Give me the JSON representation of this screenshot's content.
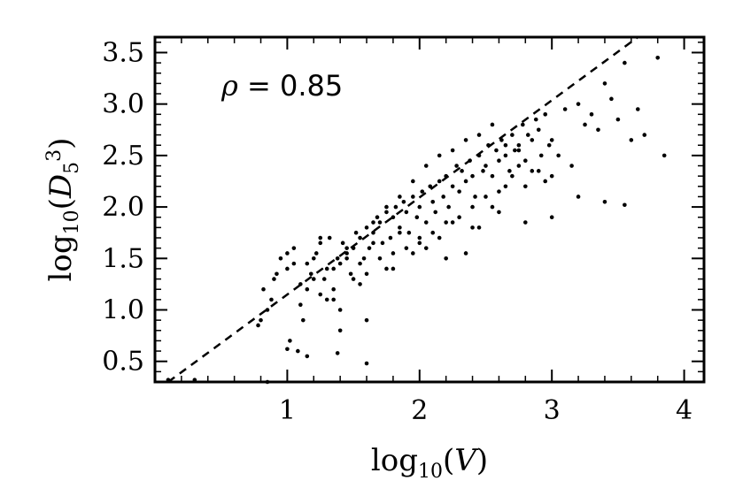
{
  "chart_data": {
    "type": "scatter",
    "xlabel": {
      "base": "log",
      "sub": "10",
      "arg": "V"
    },
    "ylabel": {
      "base": "log",
      "sub": "10",
      "arg_main": "D",
      "arg_sub": "5",
      "arg_sup": "3"
    },
    "xlim": [
      0.0,
      4.15
    ],
    "ylim": [
      0.3,
      3.65
    ],
    "xticks": [
      1,
      2,
      3,
      4
    ],
    "yticks": [
      0.5,
      1.0,
      1.5,
      2.0,
      2.5,
      3.0,
      3.5
    ],
    "xtick_labels": [
      "1",
      "2",
      "3",
      "4"
    ],
    "ytick_labels": [
      "0.5",
      "1.0",
      "1.5",
      "2.0",
      "2.5",
      "3.0",
      "3.5"
    ],
    "grid": false,
    "annotation": {
      "symbol": "ρ",
      "text": " = 0.85"
    },
    "fit_line": {
      "style": "dashed",
      "points": [
        [
          0.1,
          0.3
        ],
        [
          3.65,
          3.65
        ]
      ]
    },
    "series": [
      {
        "marker": "dot",
        "color": "#000000",
        "x": [
          0.8,
          0.85,
          0.82,
          0.9,
          0.95,
          1.0,
          1.05,
          0.78,
          0.88,
          0.92,
          1.02,
          1.08,
          1.12,
          1.1,
          1.15,
          1.2,
          1.18,
          1.22,
          1.25,
          1.28,
          1.3,
          1.32,
          1.35,
          1.38,
          1.4,
          1.42,
          1.45,
          1.48,
          1.5,
          1.52,
          1.55,
          1.58,
          1.6,
          1.62,
          1.65,
          1.68,
          1.7,
          1.72,
          1.75,
          1.78,
          1.8,
          1.82,
          1.85,
          1.88,
          1.9,
          1.92,
          1.95,
          1.98,
          2.0,
          2.02,
          2.05,
          2.08,
          2.1,
          2.12,
          2.15,
          2.18,
          2.2,
          2.22,
          2.25,
          2.28,
          2.3,
          2.32,
          2.35,
          2.38,
          2.4,
          2.42,
          2.45,
          2.48,
          2.5,
          2.52,
          2.55,
          2.58,
          2.6,
          2.62,
          2.65,
          2.68,
          2.7,
          2.72,
          2.75,
          2.78,
          2.8,
          2.82,
          2.85,
          2.88,
          2.9,
          2.92,
          2.95,
          2.98,
          3.0,
          3.05,
          3.1,
          3.15,
          3.2,
          3.25,
          3.3,
          3.35,
          3.4,
          3.45,
          3.5,
          3.55,
          3.6,
          3.65,
          3.7,
          3.8,
          3.85,
          1.0,
          1.1,
          1.2,
          1.3,
          1.4,
          1.5,
          1.6,
          1.7,
          1.8,
          1.9,
          2.0,
          2.1,
          2.2,
          2.3,
          2.4,
          2.5,
          2.6,
          2.7,
          2.8,
          2.9,
          3.0,
          1.05,
          1.15,
          1.25,
          1.35,
          1.45,
          1.55,
          1.65,
          1.75,
          1.85,
          1.95,
          2.05,
          2.15,
          2.25,
          2.35,
          2.45,
          2.55,
          2.65,
          2.75,
          2.85,
          2.95,
          1.25,
          1.35,
          1.45,
          1.55,
          1.65,
          1.75,
          1.85,
          1.95,
          2.05,
          2.15,
          2.25,
          2.35,
          2.45,
          2.55,
          2.65,
          2.75,
          1.4,
          1.6,
          1.8,
          2.0,
          2.2,
          2.4,
          2.6,
          2.8,
          3.0,
          3.2,
          0.1,
          0.3,
          0.85,
          1.0,
          1.15,
          1.38,
          1.6,
          3.4,
          3.55
        ],
        "y": [
          0.9,
          1.0,
          1.2,
          1.3,
          1.5,
          1.55,
          1.45,
          0.85,
          1.1,
          1.35,
          0.7,
          0.6,
          0.9,
          1.05,
          1.2,
          1.5,
          1.35,
          1.55,
          1.65,
          1.3,
          1.4,
          1.7,
          1.2,
          1.5,
          1.45,
          1.65,
          1.55,
          1.35,
          1.6,
          1.75,
          1.7,
          1.5,
          1.8,
          1.6,
          1.75,
          1.9,
          1.85,
          1.65,
          1.95,
          1.7,
          1.9,
          2.0,
          1.8,
          2.05,
          1.95,
          1.75,
          2.1,
          1.9,
          2.0,
          2.15,
          1.85,
          2.2,
          2.05,
          1.95,
          2.25,
          2.1,
          2.3,
          2.0,
          2.2,
          2.4,
          2.15,
          2.35,
          2.25,
          2.45,
          2.3,
          2.1,
          2.5,
          2.35,
          2.4,
          2.6,
          2.3,
          2.55,
          2.45,
          2.65,
          2.5,
          2.35,
          2.7,
          2.55,
          2.6,
          2.8,
          2.45,
          2.7,
          2.65,
          2.85,
          2.75,
          2.5,
          2.9,
          2.6,
          2.3,
          2.5,
          2.95,
          2.4,
          3.0,
          2.8,
          2.9,
          2.75,
          3.2,
          3.05,
          2.85,
          3.4,
          2.65,
          2.95,
          2.7,
          3.45,
          2.5,
          1.4,
          1.25,
          1.3,
          1.1,
          1.0,
          1.3,
          1.35,
          1.5,
          1.55,
          1.6,
          1.7,
          1.75,
          1.85,
          1.9,
          2.0,
          2.1,
          2.15,
          2.3,
          2.2,
          2.35,
          2.65,
          1.6,
          1.45,
          1.15,
          1.4,
          1.5,
          1.25,
          1.85,
          2.0,
          2.1,
          2.25,
          2.4,
          2.5,
          2.55,
          2.65,
          2.7,
          2.8,
          2.6,
          2.55,
          2.35,
          2.25,
          1.7,
          1.1,
          1.6,
          1.45,
          1.65,
          1.4,
          1.75,
          1.55,
          1.6,
          1.7,
          1.85,
          1.55,
          1.8,
          2.0,
          2.2,
          2.4,
          0.8,
          0.9,
          1.4,
          1.65,
          1.5,
          1.8,
          1.95,
          1.85,
          1.9,
          2.1,
          0.32,
          0.32,
          0.3,
          0.62,
          0.55,
          0.58,
          0.48,
          2.05,
          2.02
        ]
      }
    ]
  }
}
